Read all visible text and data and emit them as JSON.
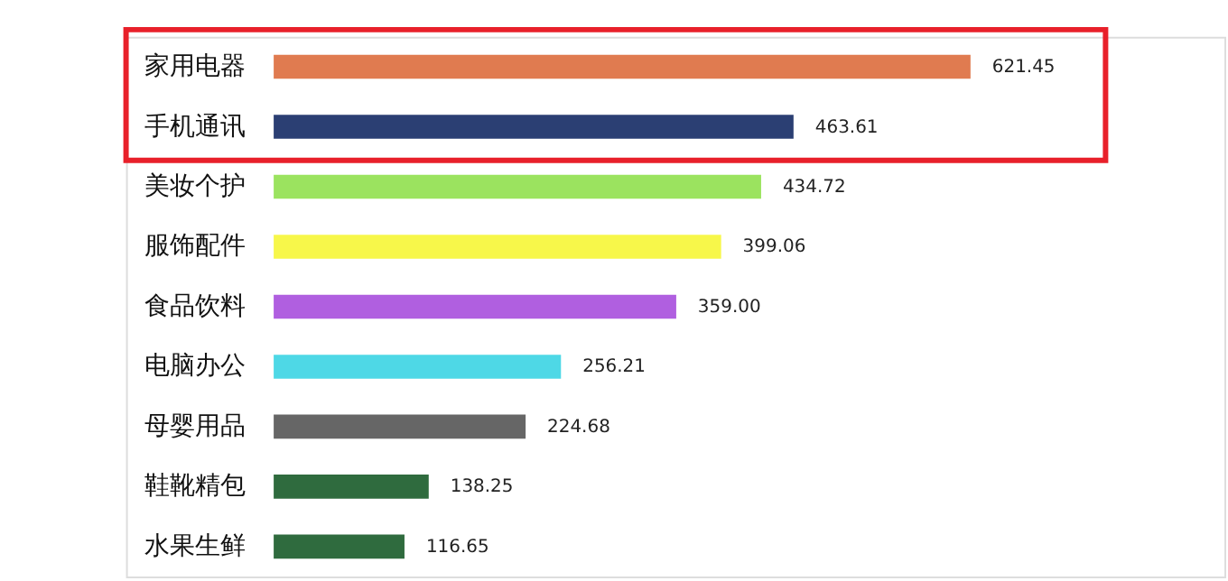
{
  "chart_data": {
    "type": "bar",
    "orientation": "horizontal",
    "categories": [
      "家用电器",
      "手机通讯",
      "美妆个护",
      "服饰配件",
      "食品饮料",
      "电脑办公",
      "母婴用品",
      "鞋靴精包",
      "水果生鲜"
    ],
    "values": [
      621.45,
      463.61,
      434.72,
      399.06,
      359.0,
      256.21,
      224.68,
      138.25,
      116.65
    ],
    "colors": [
      "#e07b50",
      "#2b3f73",
      "#9be35f",
      "#f7f74a",
      "#b05fe0",
      "#4ed8e6",
      "#666666",
      "#2f6b3e",
      "#2f6b3e"
    ],
    "value_labels": [
      "621.45",
      "463.61",
      "434.72",
      "399.06",
      "359.00",
      "256.21",
      "224.68",
      "138.25",
      "116.65"
    ]
  }
}
